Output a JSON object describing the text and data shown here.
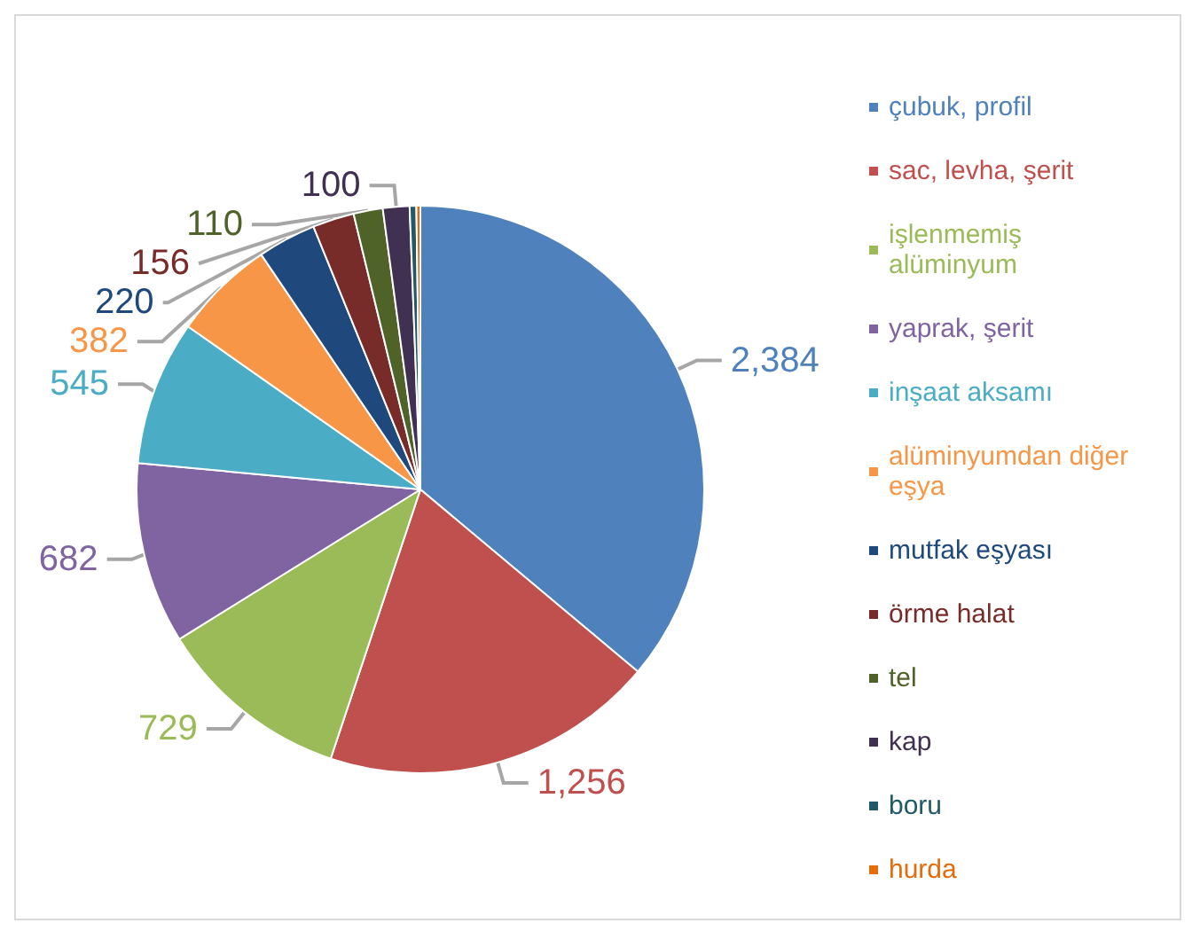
{
  "chart_data": {
    "type": "pie",
    "categories": [
      "çubuk, profil",
      "sac, levha, şerit",
      "işlenmemiş alüminyum",
      "yaprak, şerit",
      "inşaat aksamı",
      "alüminyumdan diğer eşya",
      "mutfak eşyası",
      "örme halat",
      "tel",
      "kap",
      "boru",
      "hurda"
    ],
    "values": [
      2384,
      1256,
      729,
      682,
      545,
      382,
      220,
      156,
      110,
      100,
      25,
      15
    ],
    "value_labels": [
      "2,384",
      "1,256",
      "729",
      "682",
      "545",
      "382",
      "220",
      "156",
      "110",
      "100",
      null,
      null
    ],
    "colors": [
      "#4f81bd",
      "#c0504d",
      "#9bbb59",
      "#8064a2",
      "#4bacc6",
      "#f79646",
      "#1f497d",
      "#772c2a",
      "#4f6228",
      "#403152",
      "#215968",
      "#e46c0a"
    ],
    "legend": "right"
  }
}
